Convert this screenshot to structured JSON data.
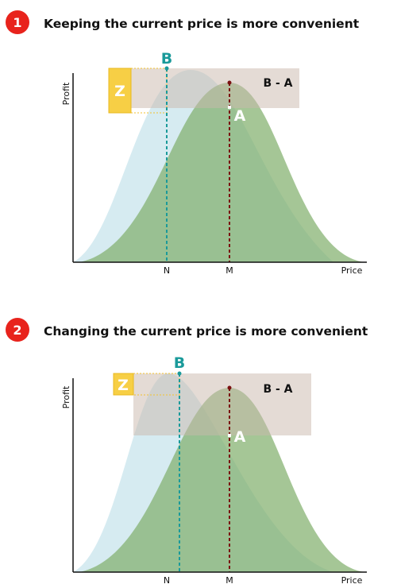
{
  "panels": [
    {
      "number": "1",
      "title": "Keeping the current price is more convenient",
      "y_label": "Profit",
      "x_label": "Price",
      "labels": {
        "b": "B",
        "a": "A",
        "b_minus_a": "B - A",
        "z": "Z",
        "n": "N",
        "m": "M"
      }
    },
    {
      "number": "2",
      "title": "Changing the current price is more convenient",
      "y_label": "Profit",
      "x_label": "Price",
      "labels": {
        "b": "B",
        "a": "A",
        "b_minus_a": "B - A",
        "z": "Z",
        "n": "N",
        "m": "M"
      }
    }
  ]
}
